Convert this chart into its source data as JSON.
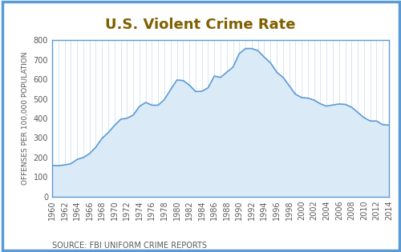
{
  "title": "U.S. Violent Crime Rate",
  "ylabel": "OFFENSES PER 100,000 POPULATION",
  "source": "SOURCE: FBI UNIFORM CRIME REPORTS",
  "years": [
    1960,
    1961,
    1962,
    1963,
    1964,
    1965,
    1966,
    1967,
    1968,
    1969,
    1970,
    1971,
    1972,
    1973,
    1974,
    1975,
    1976,
    1977,
    1978,
    1979,
    1980,
    1981,
    1982,
    1983,
    1984,
    1985,
    1986,
    1987,
    1988,
    1989,
    1990,
    1991,
    1992,
    1993,
    1994,
    1995,
    1996,
    1997,
    1998,
    1999,
    2000,
    2001,
    2002,
    2003,
    2004,
    2005,
    2006,
    2007,
    2008,
    2009,
    2010,
    2011,
    2012,
    2013,
    2014
  ],
  "values": [
    160,
    158,
    162,
    168,
    190,
    200,
    220,
    253,
    298,
    328,
    364,
    396,
    401,
    417,
    462,
    482,
    468,
    468,
    497,
    548,
    597,
    594,
    571,
    538,
    539,
    557,
    617,
    610,
    637,
    663,
    732,
    758,
    758,
    747,
    714,
    685,
    637,
    611,
    568,
    524,
    507,
    504,
    494,
    475,
    463,
    469,
    474,
    472,
    458,
    431,
    404,
    387,
    387,
    368,
    366
  ],
  "line_color": "#5B9BD5",
  "fill_color": "#DAEAF7",
  "border_color": "#5B9BD5",
  "outer_border_color": "#5B9BD5",
  "background_color": "#FFFFFF",
  "outer_bg_color": "#FFFFFF",
  "vgrid_color": "#C8DCF0",
  "title_color": "#7F6000",
  "source_color": "#595959",
  "ylabel_color": "#595959",
  "ytick_color": "#595959",
  "xtick_color": "#595959",
  "ylim": [
    0,
    800
  ],
  "yticks": [
    0,
    100,
    200,
    300,
    400,
    500,
    600,
    700,
    800
  ],
  "title_fontsize": 13,
  "source_fontsize": 7,
  "ylabel_fontsize": 6.5,
  "tick_fontsize": 7
}
